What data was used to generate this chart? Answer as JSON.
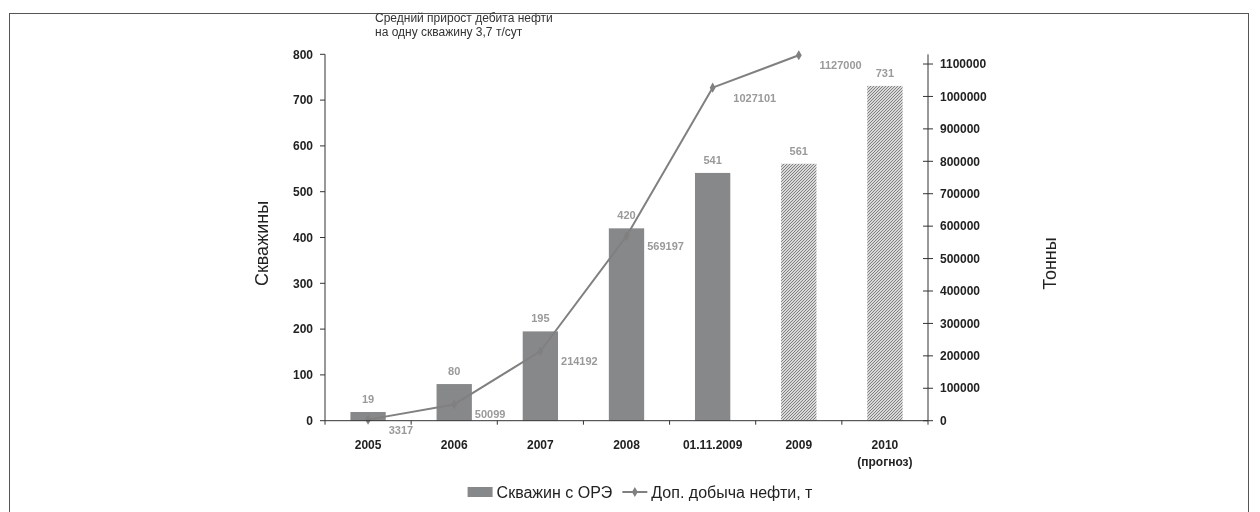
{
  "chart_data": {
    "type": "bar",
    "annotations": [
      "Средний прирост дебита нефти\nна одну скважину 3,7 т/сут"
    ],
    "ylabel": "Скважины",
    "y2label": "Тонны",
    "categories": [
      "2005",
      "2006",
      "2007",
      "2008",
      "01.11.2009",
      "2009",
      "2010\n(прогноз)"
    ],
    "series": [
      {
        "name": "Скважин с ОРЭ",
        "color": "#87888a",
        "colors": [
          "#87888a",
          "#87888a",
          "#87888a",
          "#87888a",
          "#87888a",
          "#7a7a7a",
          "#7a7a7a"
        ],
        "values": [
          19,
          80,
          195,
          420,
          541,
          561,
          731
        ]
      },
      {
        "name": "Доп. добыча нефти, т",
        "type": "line",
        "axis": "y2",
        "color": "#808080",
        "values": [
          3317,
          50099,
          214192,
          569197,
          1027101,
          1127000,
          null
        ]
      }
    ],
    "ylim": [
      0,
      800
    ],
    "yticks": [
      0,
      100,
      200,
      300,
      400,
      500,
      600,
      700,
      800
    ],
    "y2lim": [
      0,
      1130000
    ],
    "y2ticks": [
      0,
      100000,
      200000,
      300000,
      400000,
      500000,
      600000,
      700000,
      800000,
      900000,
      1000000,
      1100000
    ],
    "marker": "diamond",
    "data_labels": true,
    "legend": "bottom"
  }
}
